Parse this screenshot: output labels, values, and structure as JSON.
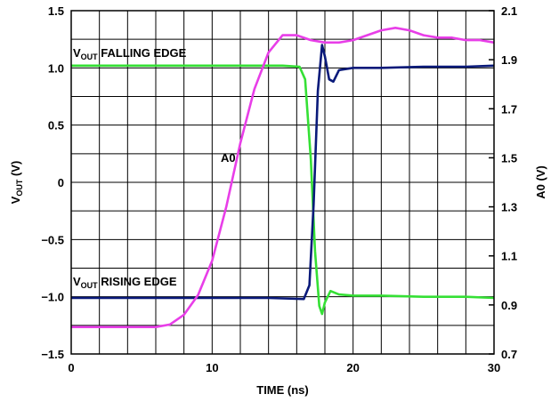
{
  "chart_data": {
    "type": "line",
    "title": "",
    "xlabel": "TIME (ns)",
    "ylabel_left": {
      "main": "V",
      "sub": "OUT",
      "tail": " (V)"
    },
    "ylabel_right": "A0 (V)",
    "xlim": [
      0,
      30
    ],
    "ylim_left": [
      -1.5,
      1.5
    ],
    "ylim_right": [
      0.7,
      2.1
    ],
    "x_ticks": [
      "0",
      "10",
      "20",
      "30"
    ],
    "y_left_ticks": [
      "1.5",
      "1.0",
      "0.5",
      "0",
      "−0.5",
      "−1.0",
      "−1.5"
    ],
    "y_right_ticks": [
      "2.1",
      "1.9",
      "1.7",
      "1.5",
      "1.3",
      "1.1",
      "0.9",
      "0.7"
    ],
    "grid": true,
    "annotations": [
      {
        "main": "V",
        "sub": "OUT",
        "tail": " FALLING EDGE"
      },
      {
        "main": "V",
        "sub": "OUT",
        "tail": " RISING EDGE"
      },
      {
        "main": "A0",
        "sub": "",
        "tail": ""
      }
    ],
    "series": [
      {
        "axis": "left",
        "color": "#35e035",
        "x": [
          0,
          4,
          8,
          12,
          15,
          16.2,
          16.6,
          17.0,
          17.3,
          17.6,
          17.8,
          18.0,
          18.4,
          19,
          20,
          22,
          25,
          28,
          30
        ],
        "y": [
          1.02,
          1.02,
          1.02,
          1.02,
          1.02,
          1.01,
          0.9,
          0.2,
          -0.6,
          -1.08,
          -1.15,
          -1.05,
          -0.95,
          -0.98,
          -0.99,
          -0.99,
          -1.0,
          -1.0,
          -1.01
        ]
      },
      {
        "axis": "left",
        "color": "#0a1a7a",
        "x": [
          0,
          5,
          10,
          14,
          16.5,
          16.9,
          17.2,
          17.5,
          17.8,
          18.0,
          18.3,
          18.6,
          19,
          20,
          22,
          25,
          28,
          30
        ],
        "y": [
          -1.01,
          -1.01,
          -1.01,
          -1.01,
          -1.02,
          -0.9,
          -0.2,
          0.8,
          1.2,
          1.1,
          0.9,
          0.88,
          0.98,
          1.0,
          1.0,
          1.01,
          1.01,
          1.02
        ]
      },
      {
        "axis": "right",
        "color": "#e83ee8",
        "x": [
          0,
          2,
          4,
          6,
          7,
          8,
          9,
          10,
          11,
          12,
          13,
          14,
          15,
          16,
          17,
          18,
          19,
          20,
          21,
          22,
          23,
          24,
          25,
          26,
          27,
          28,
          29,
          30
        ],
        "y": [
          0.81,
          0.81,
          0.81,
          0.81,
          0.82,
          0.86,
          0.94,
          1.08,
          1.3,
          1.56,
          1.78,
          1.93,
          2.0,
          2.0,
          1.98,
          1.97,
          1.97,
          1.98,
          2.0,
          2.02,
          2.03,
          2.02,
          2.0,
          1.99,
          1.99,
          1.98,
          1.98,
          1.97
        ]
      }
    ]
  }
}
